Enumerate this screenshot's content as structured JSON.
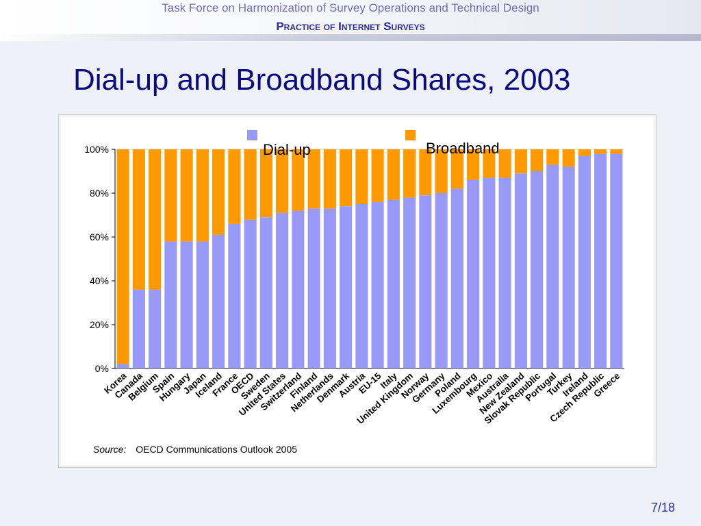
{
  "header": {
    "title": "Task Force on Harmonization of Survey Operations and Technical Design",
    "subtitle": "Practice of Internet Surveys"
  },
  "slide_title": "Dial-up and Broadband Shares, 2003",
  "source": {
    "label": "Source:",
    "text": "OECD Communications Outlook 2005"
  },
  "page_number": "7/18",
  "colors": {
    "dialup": "#9999f8",
    "broadband": "#ff9900"
  },
  "chart_data": {
    "type": "bar",
    "stacked": true,
    "title": "",
    "xlabel": "",
    "ylabel": "",
    "ylim": [
      0,
      100
    ],
    "yticks": [
      "0%",
      "20%",
      "40%",
      "60%",
      "80%",
      "100%"
    ],
    "grid": false,
    "legend_position": "top",
    "categories": [
      "Korea",
      "Canada",
      "Belgium",
      "Spain",
      "Hungary",
      "Japan",
      "Iceland",
      "France",
      "OECD",
      "Sweden",
      "United States",
      "Switzerland",
      "Finland",
      "Netherlands",
      "Denmark",
      "Austria",
      "EU-15",
      "Italy",
      "United Kingdom",
      "Norway",
      "Germany",
      "Poland",
      "Luxembourg",
      "Mexico",
      "Australia",
      "New Zealand",
      "Slovak Republic",
      "Portugal",
      "Turkey",
      "Ireland",
      "Czech Republic",
      "Greece"
    ],
    "series": [
      {
        "name": "Dial-up",
        "values": [
          2,
          36,
          36,
          58,
          58,
          58,
          61,
          66,
          68,
          69,
          71,
          72,
          73,
          73,
          74,
          75,
          76,
          77,
          78,
          79,
          80,
          82,
          86,
          87,
          87,
          89,
          90,
          93,
          92,
          97,
          98,
          98
        ]
      },
      {
        "name": "Broadband",
        "values": [
          98,
          64,
          64,
          42,
          42,
          42,
          39,
          34,
          32,
          31,
          29,
          28,
          27,
          27,
          26,
          25,
          24,
          23,
          22,
          21,
          20,
          18,
          14,
          13,
          13,
          11,
          10,
          7,
          8,
          3,
          2,
          2
        ]
      }
    ]
  }
}
